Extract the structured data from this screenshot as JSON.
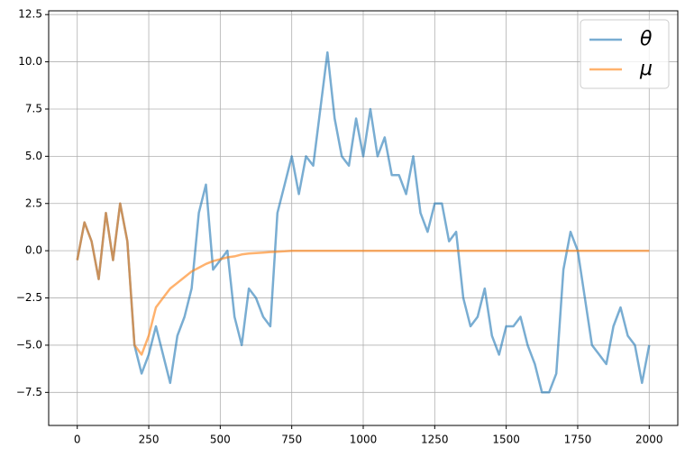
{
  "chart_data": {
    "type": "line",
    "x": [
      0,
      25,
      50,
      75,
      100,
      125,
      150,
      175,
      200,
      225,
      250,
      275,
      300,
      325,
      350,
      375,
      400,
      425,
      450,
      475,
      500,
      525,
      550,
      575,
      600,
      625,
      650,
      675,
      700,
      725,
      750,
      775,
      800,
      825,
      850,
      875,
      900,
      925,
      950,
      975,
      1000,
      1025,
      1050,
      1075,
      1100,
      1125,
      1150,
      1175,
      1200,
      1225,
      1250,
      1275,
      1300,
      1325,
      1350,
      1375,
      1400,
      1425,
      1450,
      1475,
      1500,
      1525,
      1550,
      1575,
      1600,
      1625,
      1650,
      1675,
      1700,
      1725,
      1750,
      1775,
      1800,
      1825,
      1850,
      1875,
      1900,
      1925,
      1950,
      1975,
      2000
    ],
    "series": [
      {
        "name": "θ",
        "color": "#1f77b4",
        "values": [
          -0.5,
          1.5,
          0.5,
          -1.5,
          2,
          -0.5,
          2.5,
          0.5,
          -5,
          -6.5,
          -5.5,
          -4,
          -5.5,
          -7,
          -4.5,
          -3.5,
          -2,
          2,
          3.5,
          -1,
          -0.5,
          0,
          -3.5,
          -5,
          -2,
          -2.5,
          -3.5,
          -4,
          2,
          3.5,
          5,
          3,
          5,
          4.5,
          7.5,
          10.5,
          7,
          5,
          4.5,
          7,
          5,
          7.5,
          5,
          6,
          4,
          4,
          3,
          5,
          2,
          1,
          2.5,
          2.5,
          0.5,
          1,
          -2.5,
          -4,
          -3.5,
          -2,
          -4.5,
          -5.5,
          -4,
          -4,
          -3.5,
          -5,
          -6,
          -7.5,
          -7.5,
          -6.5,
          -1,
          1,
          0,
          -2.5,
          -5,
          -5.5,
          -6,
          -4,
          -3,
          -4.5,
          -5,
          -7,
          -5
        ]
      },
      {
        "name": "μ",
        "color": "#ff7f0e",
        "values": [
          -0.5,
          1.5,
          0.5,
          -1.5,
          2,
          -0.5,
          2.5,
          0.5,
          -5,
          -5.5,
          -4.5,
          -3,
          -2.5,
          -2,
          -1.7,
          -1.4,
          -1.1,
          -0.9,
          -0.7,
          -0.55,
          -0.45,
          -0.35,
          -0.3,
          -0.2,
          -0.15,
          -0.12,
          -0.1,
          -0.07,
          -0.05,
          -0.03,
          0,
          0,
          0,
          0,
          0,
          0,
          0,
          0,
          0,
          0,
          0,
          0,
          0,
          0,
          0,
          0,
          0,
          0,
          0,
          0,
          0,
          0,
          0,
          0,
          0,
          0,
          0,
          0,
          0,
          0,
          0,
          0,
          0,
          0,
          0,
          0,
          0,
          0,
          0,
          0,
          0,
          0,
          0,
          0,
          0,
          0,
          0,
          0,
          0,
          0,
          0
        ]
      }
    ],
    "xlim": [
      -100,
      2100
    ],
    "ylim": [
      -9.25,
      12.7
    ],
    "xticks": [
      0,
      250,
      500,
      750,
      1000,
      1250,
      1500,
      1750,
      2000
    ],
    "yticks": [
      {
        "value": -7.5,
        "label": "−7.5"
      },
      {
        "value": -5,
        "label": "−5.0"
      },
      {
        "value": -2.5,
        "label": "−2.5"
      },
      {
        "value": 0,
        "label": "0.0"
      },
      2.5,
      {
        "value": 5,
        "label": "5.0"
      },
      7.5,
      {
        "value": 10,
        "label": "10.0"
      },
      12.5
    ],
    "grid": true,
    "legend": "upper right"
  }
}
